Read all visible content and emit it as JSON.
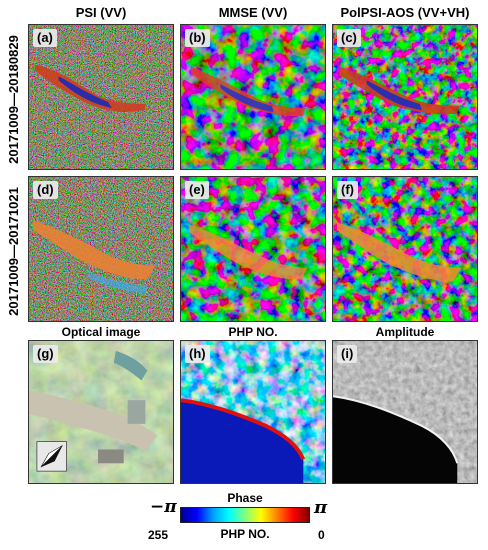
{
  "column_titles": [
    "PSI (VV)",
    "MMSE (VV)",
    "PolPSI-AOS (VV+VH)"
  ],
  "row_titles": [
    "20171009—20180829",
    "20171009—20171021"
  ],
  "panel_labels": [
    "(a)",
    "(b)",
    "(c)",
    "(d)",
    "(e)",
    "(f)",
    "(g)",
    "(h)",
    "(i)"
  ],
  "bottom_titles": [
    "Optical image",
    "PHP NO.",
    "Amplitude"
  ],
  "colorbar": {
    "title": "Phase",
    "min_symbol": "−π",
    "max_symbol": "π",
    "left_value": "255",
    "mid_label": "PHP NO.",
    "right_value": "0",
    "colors": [
      "#00008f",
      "#0000ff",
      "#00a0ff",
      "#00ffff",
      "#80ff80",
      "#ffff00",
      "#ff8000",
      "#ff0000",
      "#800000"
    ]
  }
}
